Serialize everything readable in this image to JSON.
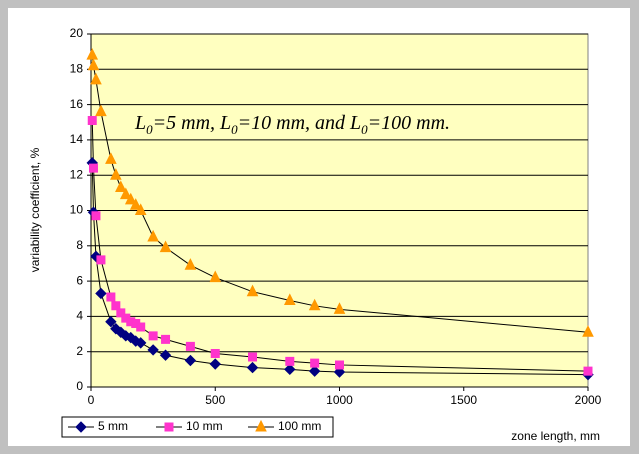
{
  "chart_data": {
    "type": "line",
    "annotation": [
      "L",
      "0",
      "=5 mm, L",
      "0",
      "=10 mm, and L",
      "0",
      "=100 mm."
    ],
    "x_label": "zone length, mm",
    "y_label": "variability coefficient, %",
    "x": [
      5,
      10,
      20,
      40,
      80,
      100,
      120,
      140,
      160,
      180,
      200,
      250,
      300,
      400,
      500,
      650,
      800,
      900,
      1000,
      2000
    ],
    "series": [
      {
        "name": "5 mm",
        "color": "#000080",
        "marker": "diamond",
        "values": [
          12.7,
          9.9,
          7.4,
          5.3,
          3.7,
          3.3,
          3.1,
          2.9,
          2.8,
          2.6,
          2.5,
          2.1,
          1.8,
          1.5,
          1.3,
          1.1,
          1.0,
          0.9,
          0.85,
          0.7
        ]
      },
      {
        "name": "10 mm",
        "color": "#ff33cc",
        "marker": "square",
        "values": [
          15.1,
          12.4,
          9.7,
          7.2,
          5.1,
          4.6,
          4.2,
          3.9,
          3.7,
          3.6,
          3.4,
          2.9,
          2.7,
          2.3,
          1.9,
          1.7,
          1.45,
          1.35,
          1.25,
          0.9
        ]
      },
      {
        "name": "100 mm",
        "color": "#ff9900",
        "marker": "triangle",
        "values": [
          18.8,
          18.2,
          17.4,
          15.6,
          12.9,
          12.0,
          11.3,
          10.9,
          10.6,
          10.3,
          10.0,
          8.5,
          7.9,
          6.9,
          6.2,
          5.4,
          4.9,
          4.6,
          4.4,
          3.1
        ]
      }
    ],
    "line_color": "#000000",
    "plot_background": "#ffffc0",
    "xlim": [
      0,
      2000
    ],
    "xticks": [
      0,
      500,
      1000,
      1500,
      2000
    ],
    "ylim": [
      0,
      20
    ],
    "yticks": [
      0,
      2,
      4,
      6,
      8,
      10,
      12,
      14,
      16,
      18,
      20
    ],
    "grid": true,
    "legend": "bottom-left"
  }
}
